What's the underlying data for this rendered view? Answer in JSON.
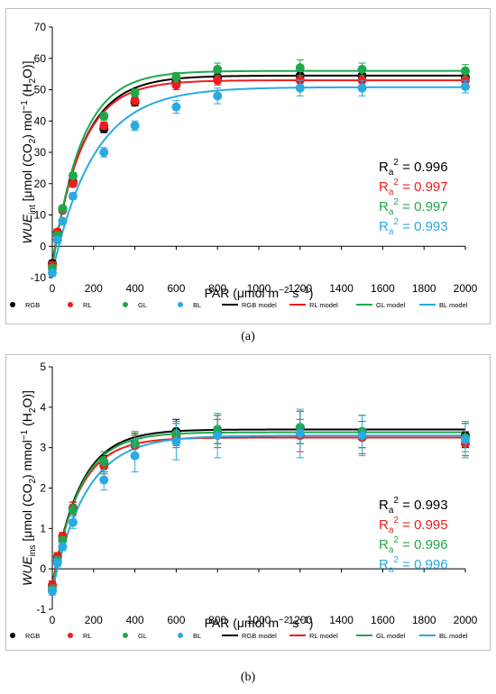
{
  "panels": [
    {
      "caption": "(a)",
      "y_label": {
        "pre": "WUE",
        "sub": "int",
        "post": " [μmol (CO",
        "sub2": "2",
        "post2": ") mol",
        "sup": "−1",
        "post3": " (H",
        "sub3": "2",
        "post4": "O)]"
      },
      "x_label": {
        "pre": "PAR (μmol m",
        "sup1": "−2",
        "mid": " s",
        "sup2": "−1",
        "post": ")"
      },
      "r2": [
        {
          "label": "R",
          "sub": "a",
          "sup": "2",
          "text": " = 0.996",
          "color": "#000000"
        },
        {
          "label": "R",
          "sub": "a",
          "sup": "2",
          "text": " = 0.997",
          "color": "#ee1c1c"
        },
        {
          "label": "R",
          "sub": "a",
          "sup": "2",
          "text": " = 0.997",
          "color": "#1fa84a"
        },
        {
          "label": "R",
          "sub": "a",
          "sup": "2",
          "text": " = 0.993",
          "color": "#29aae2"
        }
      ]
    },
    {
      "caption": "(b)",
      "y_label": {
        "pre": "WUE",
        "sub": "ins",
        "post": " [μmol (CO",
        "sub2": "2",
        "post2": ") mmol",
        "sup": "−1",
        "post3": " (H",
        "sub3": "2",
        "post4": "O)]"
      },
      "x_label": {
        "pre": "PAR (μmol m",
        "sup1": "−2",
        "mid": " s",
        "sup2": "−1",
        "post": ")"
      },
      "r2": [
        {
          "label": "R",
          "sub": "a",
          "sup": "2",
          "text": " = 0.993",
          "color": "#000000"
        },
        {
          "label": "R",
          "sub": "a",
          "sup": "2",
          "text": " = 0.995",
          "color": "#ee1c1c"
        },
        {
          "label": "R",
          "sub": "a",
          "sup": "2",
          "text": " = 0.996",
          "color": "#1fa84a"
        },
        {
          "label": "R",
          "sub": "a",
          "sup": "2",
          "text": " = 0.996",
          "color": "#29aae2"
        }
      ]
    }
  ],
  "chart_data": [
    {
      "type": "scatter",
      "x": [
        0,
        25,
        50,
        100,
        250,
        400,
        600,
        800,
        1200,
        1500,
        2000
      ],
      "xlim": [
        0,
        2000
      ],
      "xticks": [
        "0",
        "200",
        "400",
        "600",
        "800",
        "1000",
        "1200",
        "1400",
        "1600",
        "1800",
        "2000"
      ],
      "ylim": [
        -10,
        70
      ],
      "yticks": [
        "-10",
        "0",
        "10",
        "20",
        "30",
        "40",
        "50",
        "60",
        "70"
      ],
      "grid": false,
      "legend_position": "bottom",
      "series": [
        {
          "name": "RGB",
          "color": "#000000",
          "values": [
            -5.5,
            4.5,
            12,
            20.5,
            37.5,
            46,
            52.5,
            54,
            54.5,
            54.5,
            54
          ],
          "err": [
            1,
            1,
            1,
            1,
            1.2,
            1.2,
            1.5,
            1.5,
            1.5,
            1.5,
            1.5
          ],
          "model": {
            "name": "RGB model",
            "asym": 54.5,
            "k": 0.0068,
            "x0": 0
          }
        },
        {
          "name": "RL",
          "color": "#ee1c1c",
          "values": [
            -6,
            4.5,
            11.5,
            20,
            38.5,
            46.5,
            51.5,
            53,
            53,
            53,
            53
          ],
          "err": [
            1,
            1,
            1,
            1,
            1.2,
            1.2,
            1.5,
            1.5,
            1.5,
            1.5,
            1.5
          ],
          "model": {
            "name": "RL model",
            "asym": 53,
            "k": 0.0071,
            "x0": 0
          }
        },
        {
          "name": "GL",
          "color": "#1fa84a",
          "values": [
            -7,
            3.5,
            12,
            22.5,
            41.5,
            49,
            54,
            56.5,
            57,
            56.5,
            56
          ],
          "err": [
            1,
            1,
            1,
            1,
            1.2,
            1.2,
            1.5,
            2,
            2.5,
            2,
            2
          ],
          "model": {
            "name": "GL model",
            "asym": 56,
            "k": 0.0072,
            "x0": 0
          }
        },
        {
          "name": "BL",
          "color": "#29aae2",
          "values": [
            -8.5,
            2,
            8,
            16,
            30,
            38.5,
            44.5,
            48,
            50.5,
            50.5,
            51
          ],
          "err": [
            1,
            1,
            1,
            1,
            1.5,
            1.5,
            2,
            2.5,
            2.5,
            2.5,
            2
          ],
          "model": {
            "name": "BL model",
            "asym": 50.8,
            "k": 0.005,
            "x0": 0
          }
        }
      ]
    },
    {
      "type": "scatter",
      "x": [
        0,
        25,
        50,
        100,
        250,
        400,
        600,
        800,
        1200,
        1500,
        2000
      ],
      "xlim": [
        0,
        2000
      ],
      "xticks": [
        "0",
        "200",
        "400",
        "600",
        "800",
        "1000",
        "1200",
        "1400",
        "1600",
        "1800",
        "2000"
      ],
      "ylim": [
        -1,
        5
      ],
      "yticks": [
        "-1",
        "0",
        "1",
        "2",
        "3",
        "4",
        "5"
      ],
      "grid": false,
      "legend_position": "bottom",
      "series": [
        {
          "name": "RGB",
          "color": "#000000",
          "values": [
            -0.4,
            0.3,
            0.8,
            1.5,
            2.6,
            3.1,
            3.4,
            3.45,
            3.5,
            3.4,
            3.3
          ],
          "err": [
            0.1,
            0.1,
            0.1,
            0.15,
            0.2,
            0.25,
            0.3,
            0.35,
            0.4,
            0.4,
            0.3
          ],
          "model": {
            "name": "RGB model",
            "asym": 3.45,
            "k": 0.0075,
            "x0": 0
          }
        },
        {
          "name": "RL",
          "color": "#ee1c1c",
          "values": [
            -0.4,
            0.3,
            0.8,
            1.5,
            2.55,
            3.05,
            3.3,
            3.35,
            3.3,
            3.25,
            3.1
          ],
          "err": [
            0.1,
            0.1,
            0.1,
            0.15,
            0.2,
            0.25,
            0.3,
            0.35,
            0.4,
            0.4,
            0.3
          ],
          "model": {
            "name": "RL model",
            "asym": 3.25,
            "k": 0.0078,
            "x0": 0
          }
        },
        {
          "name": "GL",
          "color": "#1fa84a",
          "values": [
            -0.5,
            0.2,
            0.7,
            1.45,
            2.65,
            3.1,
            3.35,
            3.45,
            3.5,
            3.4,
            3.25
          ],
          "err": [
            0.1,
            0.1,
            0.1,
            0.15,
            0.25,
            0.3,
            0.3,
            0.35,
            0.4,
            0.4,
            0.35
          ],
          "model": {
            "name": "GL model",
            "asym": 3.38,
            "k": 0.0077,
            "x0": 0
          }
        },
        {
          "name": "BL",
          "color": "#29aae2",
          "values": [
            -0.55,
            0.15,
            0.55,
            1.15,
            2.2,
            2.8,
            3.15,
            3.3,
            3.35,
            3.3,
            3.2
          ],
          "err": [
            0.1,
            0.1,
            0.1,
            0.15,
            0.25,
            0.4,
            0.45,
            0.55,
            0.6,
            0.5,
            0.45
          ],
          "model": {
            "name": "BL model",
            "asym": 3.3,
            "k": 0.0062,
            "x0": 0
          }
        }
      ]
    }
  ]
}
